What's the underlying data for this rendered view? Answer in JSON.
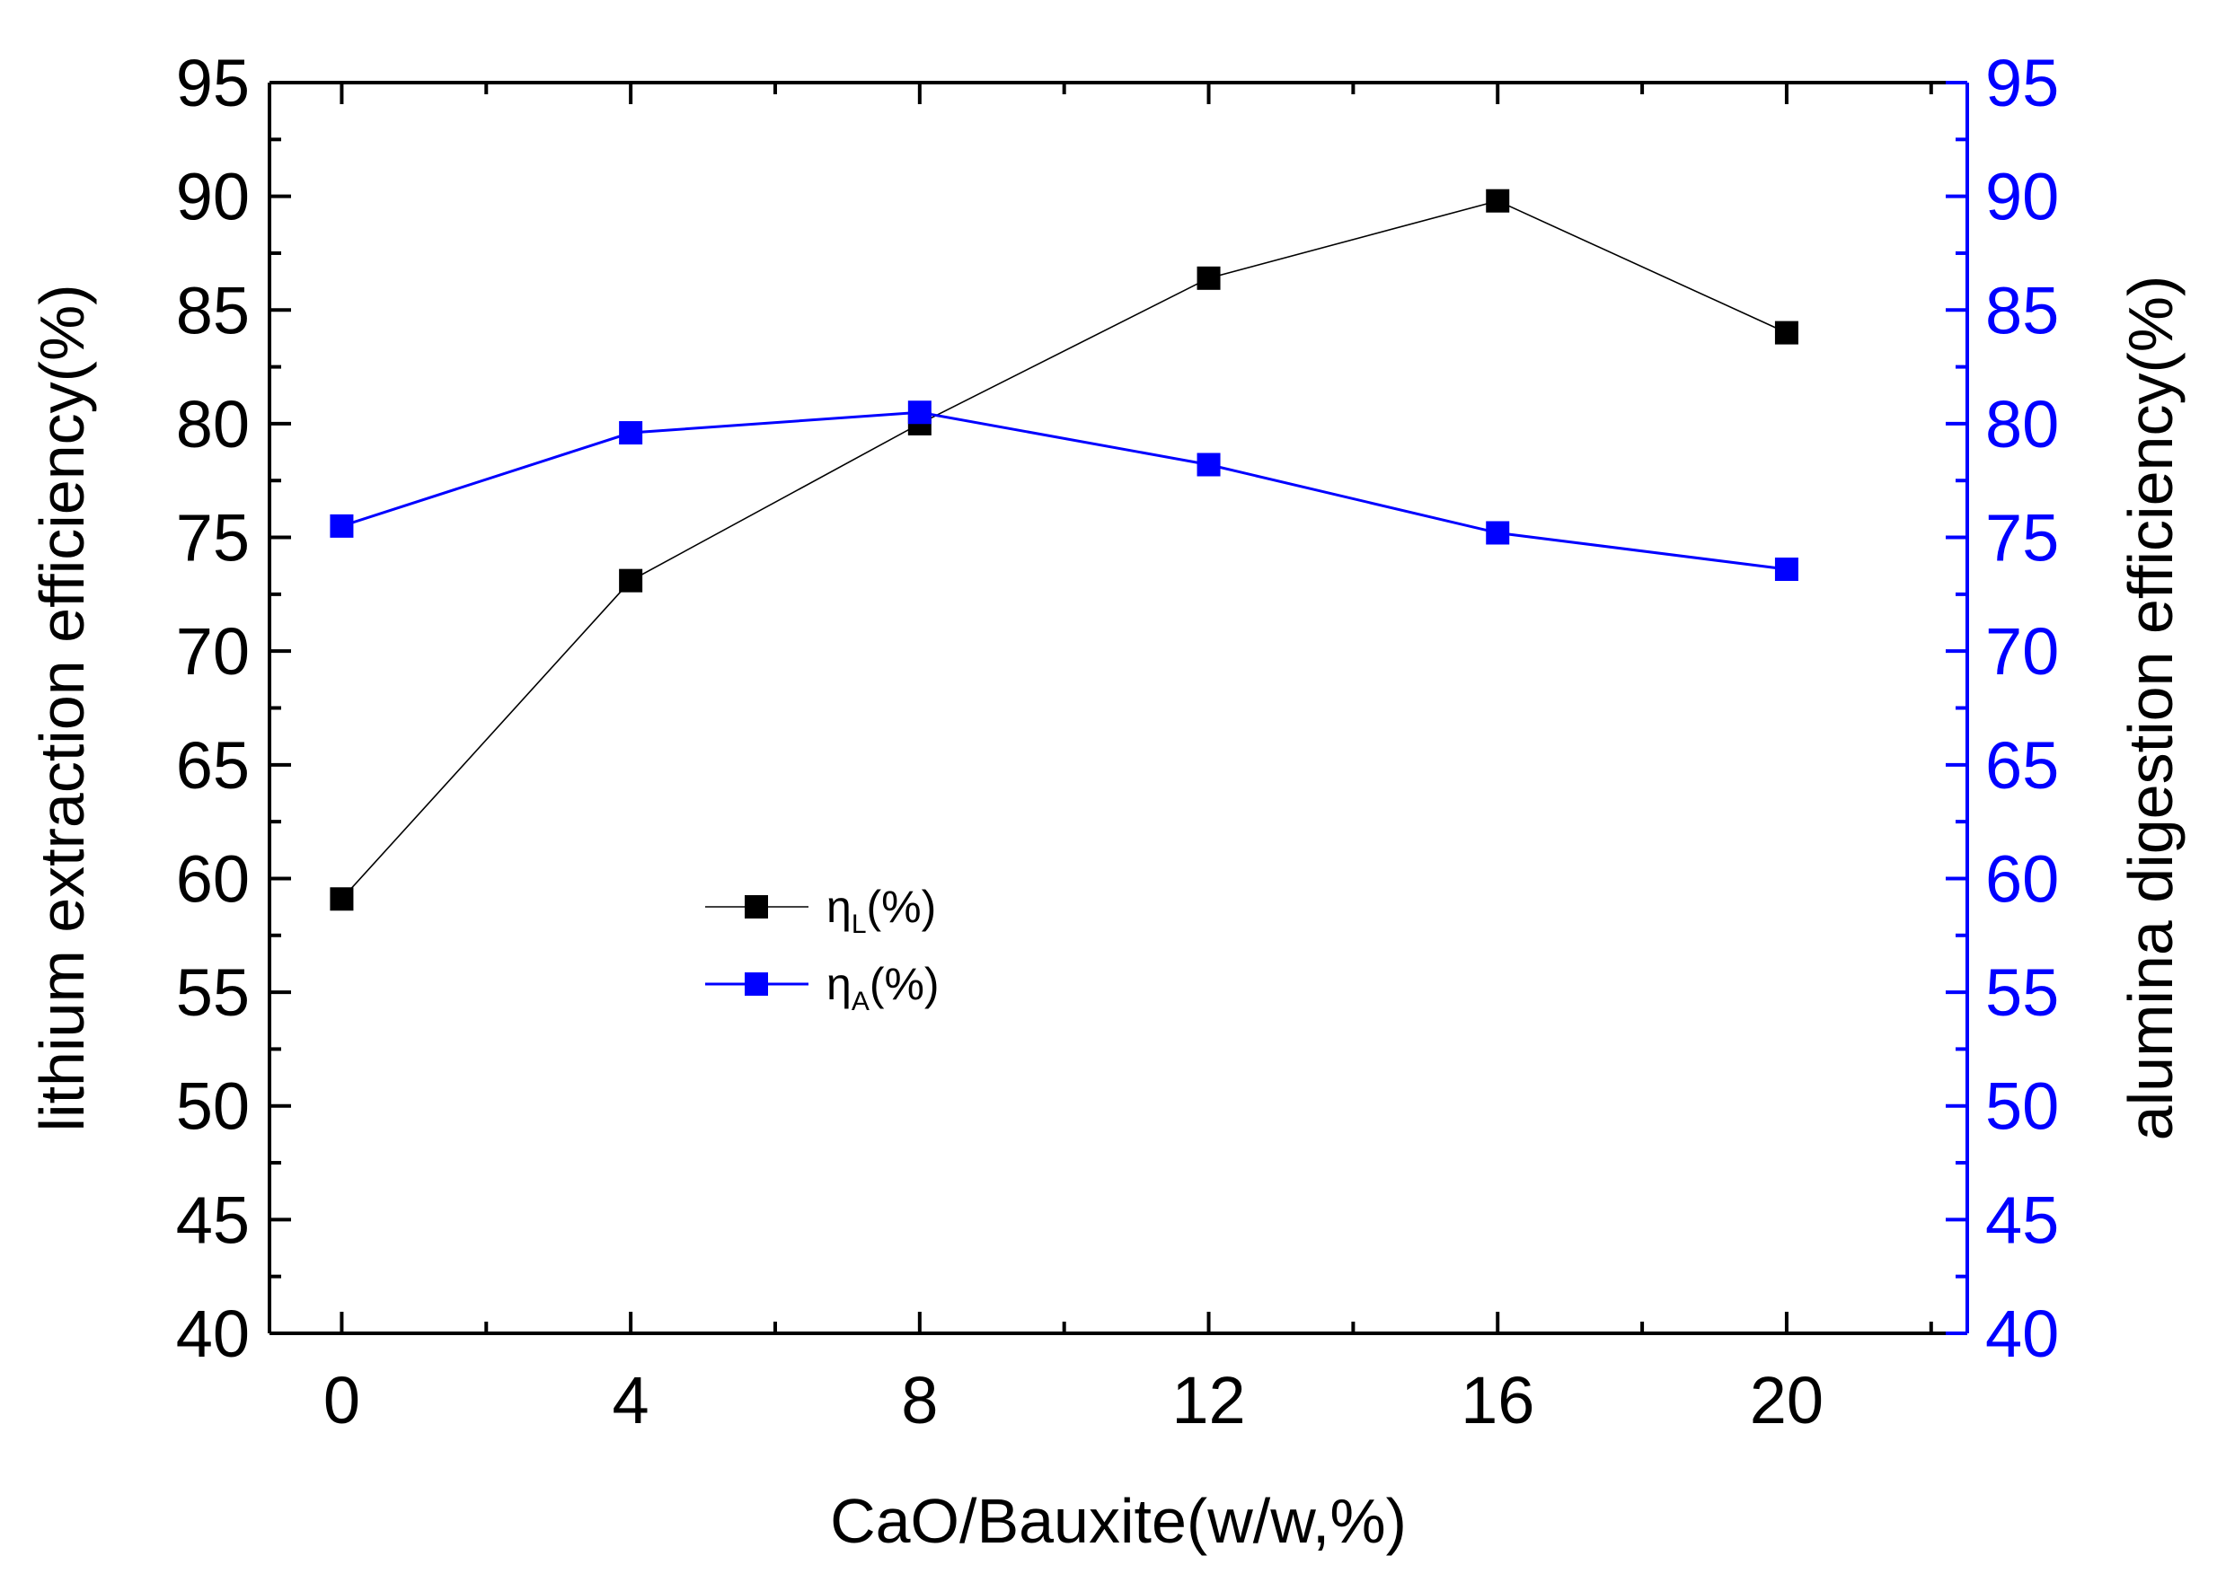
{
  "chart_data": {
    "type": "line",
    "title": "",
    "xlabel": "CaO/Bauxite(w/w,%)",
    "ylabel_left": "lithium extraction efficiency(%)",
    "ylabel_right": "alumina digestion efficiency(%)",
    "x": [
      0,
      4,
      8,
      12,
      16,
      20
    ],
    "x_ticks": [
      0,
      4,
      8,
      12,
      16,
      20
    ],
    "x_tick_labels": [
      "0",
      "4",
      "8",
      "12",
      "16",
      "20"
    ],
    "xlim": [
      -1,
      22.5
    ],
    "ylim_left": [
      40,
      95
    ],
    "ylim_right": [
      40,
      95
    ],
    "y_ticks": [
      40,
      45,
      50,
      55,
      60,
      65,
      70,
      75,
      80,
      85,
      90,
      95
    ],
    "y_tick_labels": [
      "40",
      "45",
      "50",
      "55",
      "60",
      "65",
      "70",
      "75",
      "80",
      "85",
      "90",
      "95"
    ],
    "grid": false,
    "legend_position": "center-left",
    "series": [
      {
        "name": "η_L(%)",
        "label_main": "η",
        "label_sub": "L",
        "label_tail": "(%)",
        "axis": "left",
        "color": "#000000",
        "marker": "square",
        "values": [
          59.1,
          73.1,
          80.0,
          86.4,
          89.8,
          84.0
        ]
      },
      {
        "name": "η_A(%)",
        "label_main": "η",
        "label_sub": "A",
        "label_tail": "(%)",
        "axis": "right",
        "color": "#0000ff",
        "marker": "square",
        "values": [
          75.5,
          79.6,
          80.5,
          78.2,
          75.2,
          73.6
        ]
      }
    ],
    "colors": {
      "left_axis": "#000000",
      "right_axis": "#0000ff",
      "frame": "#000000"
    }
  }
}
